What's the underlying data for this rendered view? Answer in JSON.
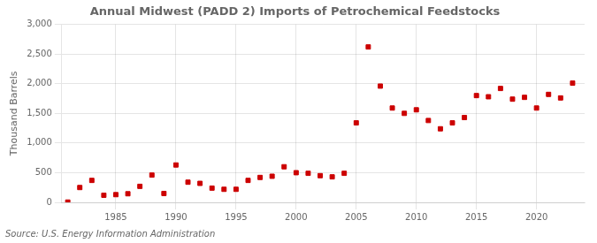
{
  "chart_data": {
    "type": "scatter",
    "title": "Annual Midwest (PADD 2) Imports of Petrochemical Feedstocks",
    "y_label": "Thousand Barrels",
    "annotations": [
      "Source: U.S. Energy Information Administration"
    ],
    "x": [
      1981,
      1982,
      1983,
      1984,
      1985,
      1986,
      1987,
      1988,
      1989,
      1990,
      1991,
      1992,
      1993,
      1994,
      1995,
      1996,
      1997,
      1998,
      1999,
      2000,
      2001,
      2002,
      2003,
      2004,
      2005,
      2006,
      2007,
      2008,
      2009,
      2010,
      2011,
      2012,
      2013,
      2014,
      2015,
      2016,
      2017,
      2018,
      2019,
      2020,
      2021,
      2022,
      2023
    ],
    "values": [
      5,
      250,
      370,
      120,
      130,
      145,
      270,
      460,
      150,
      630,
      340,
      320,
      240,
      220,
      220,
      370,
      420,
      440,
      600,
      500,
      490,
      450,
      430,
      490,
      1340,
      2620,
      1960,
      1590,
      1500,
      1560,
      1380,
      1240,
      1340,
      1430,
      1800,
      1780,
      1920,
      1740,
      1770,
      1590,
      1820,
      1760,
      2010
    ],
    "color": "#cc0000",
    "marker": "square",
    "xlim": [
      1980.5,
      2024
    ],
    "xticks": [
      1985,
      1990,
      1995,
      2000,
      2005,
      2010,
      2015,
      2020
    ],
    "ylim": [
      0,
      3000
    ],
    "yticks": [
      0,
      500,
      {
        "value": 1000,
        "label": "1,000"
      },
      {
        "value": 1500,
        "label": "1,500"
      },
      {
        "value": 2000,
        "label": "2,000"
      },
      {
        "value": 2500,
        "label": "2,500"
      },
      {
        "value": 3000,
        "label": "3,000"
      }
    ],
    "grid": true
  }
}
